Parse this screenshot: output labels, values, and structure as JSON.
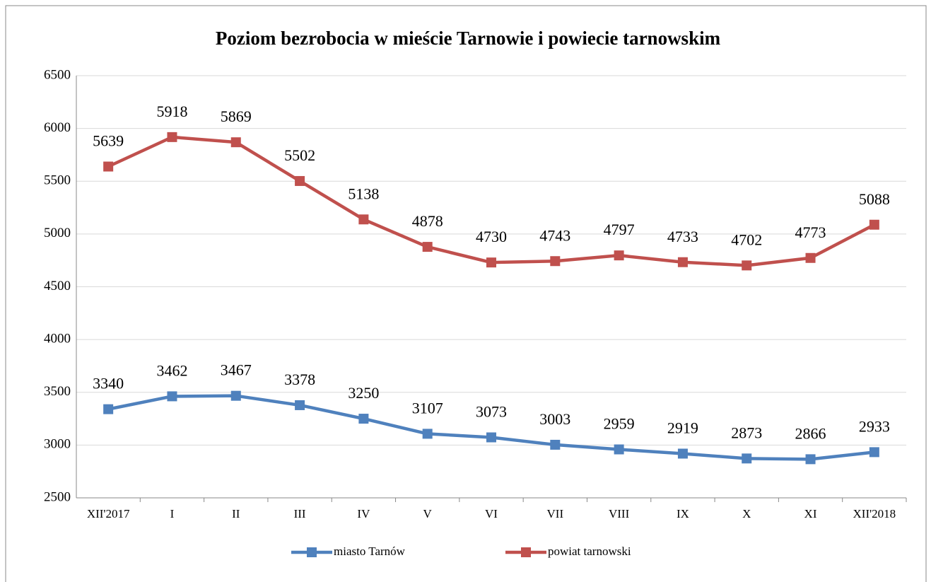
{
  "chart_data": {
    "type": "line",
    "title": "Poziom bezrobocia w mieście Tarnowie i powiecie tarnowskim",
    "categories": [
      "XII'2017",
      "I",
      "II",
      "III",
      "IV",
      "V",
      "VI",
      "VII",
      "VIII",
      "IX",
      "X",
      "XI",
      "XII'2018"
    ],
    "series": [
      {
        "name": "miasto Tarnów",
        "color": "#4f81bd",
        "values": [
          3340,
          3462,
          3467,
          3378,
          3250,
          3107,
          3073,
          3003,
          2959,
          2919,
          2873,
          2866,
          2933
        ]
      },
      {
        "name": "powiat tarnowski",
        "color": "#c0504d",
        "values": [
          5639,
          5918,
          5869,
          5502,
          5138,
          4878,
          4730,
          4743,
          4797,
          4733,
          4702,
          4773,
          5088
        ]
      }
    ],
    "ylim": [
      2500,
      6500
    ],
    "yticks": [
      2500,
      3000,
      3500,
      4000,
      4500,
      5000,
      5500,
      6000,
      6500
    ],
    "grid": true,
    "legend": "bottom"
  }
}
